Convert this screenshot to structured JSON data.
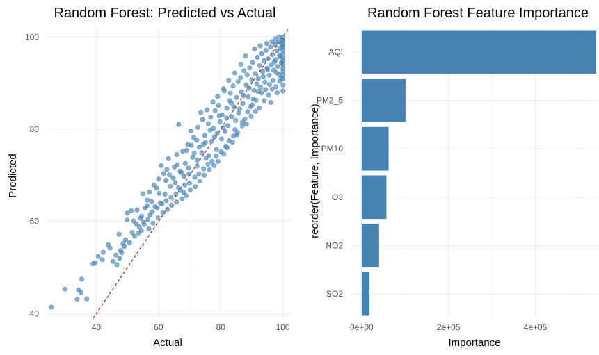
{
  "colors": {
    "point_fill": "#4682B4",
    "bar_fill": "#4682B4",
    "reference_line": "#8B0000",
    "grid": "#ebebeb",
    "tick_text": "#4d4d4d"
  },
  "chart_data": [
    {
      "type": "scatter",
      "title": "Random Forest: Predicted vs Actual",
      "xlabel": "Actual",
      "ylabel": "Predicted",
      "xlim": [
        24,
        103
      ],
      "ylim": [
        39,
        102
      ],
      "xticks": [
        40,
        60,
        80,
        100
      ],
      "yticks": [
        40,
        60,
        80,
        100
      ],
      "grid": true,
      "reference_line": {
        "slope": 1,
        "intercept": 0,
        "style": "dashed"
      },
      "points": [
        [
          25.5,
          41.4
        ],
        [
          29.9,
          45.3
        ],
        [
          33.8,
          43.1
        ],
        [
          34.3,
          45.1
        ],
        [
          35.3,
          47.5
        ],
        [
          35.1,
          44.6
        ],
        [
          36.9,
          43.2
        ],
        [
          38.9,
          50.8
        ],
        [
          39.6,
          51.0
        ],
        [
          41.9,
          51.7
        ],
        [
          44.4,
          54.2
        ],
        [
          45.4,
          51.3
        ],
        [
          46.6,
          50.6
        ],
        [
          47.3,
          57.2
        ],
        [
          47.8,
          53.7
        ],
        [
          48.1,
          53.2
        ],
        [
          49.4,
          56.0
        ],
        [
          50.0,
          61.8
        ],
        [
          51.2,
          62.3
        ],
        [
          52.0,
          60.1
        ],
        [
          53.1,
          62.5
        ],
        [
          53.8,
          58.8
        ],
        [
          54.2,
          60.7
        ],
        [
          54.5,
          58.0
        ],
        [
          55.0,
          66.0
        ],
        [
          55.4,
          59.3
        ],
        [
          56.3,
          63.4
        ],
        [
          56.4,
          64.6
        ],
        [
          57.1,
          66.4
        ],
        [
          57.8,
          64.3
        ],
        [
          58.5,
          67.9
        ],
        [
          59.4,
          67.2
        ],
        [
          60.0,
          69.2
        ],
        [
          60.2,
          66.1
        ],
        [
          60.9,
          72.1
        ],
        [
          61.7,
          70.4
        ],
        [
          62.4,
          68.9
        ],
        [
          62.7,
          71.3
        ],
        [
          63.2,
          73.6
        ],
        [
          63.5,
          70.1
        ],
        [
          64.7,
          69.4
        ],
        [
          65.4,
          68.4
        ],
        [
          65.9,
          74.5
        ],
        [
          66.0,
          72.3
        ],
        [
          66.5,
          81.0
        ],
        [
          66.4,
          67.3
        ],
        [
          67.3,
          70.6
        ],
        [
          68.1,
          66.3
        ],
        [
          68.6,
          72.6
        ],
        [
          69.1,
          75.4
        ],
        [
          69.8,
          70.3
        ],
        [
          70.4,
          79.6
        ],
        [
          70.6,
          76.5
        ],
        [
          71.5,
          74.8
        ],
        [
          72.3,
          77.6
        ],
        [
          72.5,
          73.3
        ],
        [
          73.1,
          76.1
        ],
        [
          73.6,
          83.6
        ],
        [
          74.4,
          76.7
        ],
        [
          74.9,
          78.6
        ],
        [
          75.3,
          73.7
        ],
        [
          76.0,
          81.2
        ],
        [
          76.2,
          74.3
        ],
        [
          76.8,
          82.6
        ],
        [
          77.1,
          77.4
        ],
        [
          77.6,
          80.2
        ],
        [
          78.2,
          84.0
        ],
        [
          78.6,
          75.6
        ],
        [
          78.9,
          79.1
        ],
        [
          79.3,
          85.2
        ],
        [
          79.8,
          81.6
        ],
        [
          80.3,
          77.9
        ],
        [
          80.5,
          83.1
        ],
        [
          81.2,
          88.3
        ],
        [
          81.4,
          79.5
        ],
        [
          82.0,
          84.5
        ],
        [
          82.3,
          80.8
        ],
        [
          82.9,
          86.2
        ],
        [
          83.1,
          87.8
        ],
        [
          83.6,
          82.7
        ],
        [
          84.0,
          89.4
        ],
        [
          84.3,
          84.8
        ],
        [
          84.6,
          79.9
        ],
        [
          85.1,
          86.9
        ],
        [
          85.6,
          90.3
        ],
        [
          85.8,
          83.5
        ],
        [
          86.4,
          91.2
        ],
        [
          86.7,
          88.1
        ],
        [
          87.1,
          85.6
        ],
        [
          87.5,
          92.7
        ],
        [
          87.8,
          82.2
        ],
        [
          88.2,
          89.6
        ],
        [
          88.5,
          91.8
        ],
        [
          88.9,
          87.0
        ],
        [
          89.3,
          93.3
        ],
        [
          89.6,
          84.9
        ],
        [
          90.0,
          90.7
        ],
        [
          90.3,
          94.5
        ],
        [
          90.7,
          88.4
        ],
        [
          91.1,
          92.1
        ],
        [
          91.4,
          86.3
        ],
        [
          91.8,
          95.6
        ],
        [
          92.1,
          91.0
        ],
        [
          92.5,
          93.8
        ],
        [
          92.8,
          89.1
        ],
        [
          93.2,
          96.4
        ],
        [
          93.5,
          92.5
        ],
        [
          93.9,
          94.9
        ],
        [
          94.2,
          90.2
        ],
        [
          94.6,
          97.1
        ],
        [
          94.9,
          93.2
        ],
        [
          95.3,
          95.3
        ],
        [
          95.6,
          91.7
        ],
        [
          96.0,
          97.8
        ],
        [
          96.3,
          94.0
        ],
        [
          96.7,
          96.2
        ],
        [
          97.0,
          92.8
        ],
        [
          97.4,
          98.4
        ],
        [
          97.7,
          95.1
        ],
        [
          98.1,
          97.0
        ],
        [
          98.3,
          93.6
        ],
        [
          98.6,
          98.9
        ],
        [
          98.9,
          96.0
        ],
        [
          99.2,
          97.6
        ],
        [
          99.5,
          94.4
        ],
        [
          99.8,
          99.4
        ],
        [
          100.0,
          100.0
        ],
        [
          100.0,
          99.2
        ],
        [
          100.0,
          98.5
        ],
        [
          100.0,
          97.8
        ],
        [
          100.0,
          97.1
        ],
        [
          100.0,
          96.3
        ],
        [
          100.0,
          95.5
        ],
        [
          100.0,
          94.8
        ],
        [
          100.0,
          94.0
        ],
        [
          100.0,
          93.2
        ],
        [
          100.0,
          92.5
        ],
        [
          100.0,
          91.7
        ],
        [
          100.0,
          90.9
        ],
        [
          100.0,
          89.6
        ],
        [
          99.4,
          91.2
        ],
        [
          98.7,
          91.9
        ],
        [
          97.9,
          92.3
        ],
        [
          96.8,
          90.6
        ],
        [
          95.7,
          89.7
        ],
        [
          94.4,
          88.6
        ],
        [
          93.1,
          87.9
        ],
        [
          91.6,
          89.8
        ],
        [
          90.5,
          86.5
        ],
        [
          89.1,
          88.9
        ],
        [
          87.4,
          87.3
        ],
        [
          86.1,
          84.4
        ],
        [
          84.8,
          81.9
        ],
        [
          83.4,
          85.7
        ],
        [
          81.9,
          82.4
        ],
        [
          80.8,
          80.3
        ],
        [
          79.5,
          82.9
        ],
        [
          78.0,
          78.3
        ],
        [
          76.6,
          79.8
        ],
        [
          75.1,
          77.1
        ],
        [
          73.9,
          74.9
        ],
        [
          72.4,
          72.0
        ],
        [
          71.0,
          73.9
        ],
        [
          69.6,
          71.6
        ],
        [
          68.2,
          69.8
        ],
        [
          66.9,
          70.9
        ],
        [
          65.1,
          71.8
        ],
        [
          63.8,
          67.6
        ],
        [
          62.1,
          65.9
        ],
        [
          60.6,
          64.0
        ],
        [
          58.9,
          63.2
        ],
        [
          57.3,
          61.4
        ],
        [
          55.7,
          62.9
        ],
        [
          54.6,
          61.1
        ],
        [
          52.9,
          59.4
        ],
        [
          51.5,
          57.6
        ],
        [
          49.9,
          60.3
        ],
        [
          48.6,
          55.2
        ],
        [
          46.3,
          52.7
        ],
        [
          43.8,
          54.9
        ],
        [
          42.2,
          53.3
        ],
        [
          40.6,
          52.4
        ],
        [
          88.0,
          95.9
        ],
        [
          86.5,
          94.1
        ],
        [
          84.5,
          92.2
        ],
        [
          82.6,
          90.6
        ],
        [
          80.9,
          88.8
        ],
        [
          79.0,
          87.1
        ],
        [
          77.5,
          85.9
        ],
        [
          75.6,
          84.2
        ],
        [
          74.2,
          82.1
        ],
        [
          72.7,
          80.4
        ],
        [
          71.3,
          78.2
        ],
        [
          69.4,
          76.7
        ],
        [
          67.8,
          75.2
        ],
        [
          90.9,
          97.4
        ],
        [
          92.7,
          98.1
        ],
        [
          94.8,
          98.6
        ],
        [
          96.5,
          99.0
        ],
        [
          97.6,
          99.6
        ],
        [
          98.8,
          100.0
        ],
        [
          99.7,
          98.2
        ],
        [
          99.1,
          95.7
        ],
        [
          97.3,
          94.6
        ],
        [
          95.1,
          93.0
        ],
        [
          93.7,
          91.4
        ],
        [
          92.0,
          88.2
        ],
        [
          90.2,
          85.3
        ],
        [
          88.7,
          83.8
        ],
        [
          87.0,
          81.5
        ],
        [
          85.3,
          78.8
        ],
        [
          83.8,
          77.2
        ],
        [
          82.1,
          76.0
        ],
        [
          81.0,
          74.6
        ],
        [
          79.1,
          73.0
        ],
        [
          77.9,
          72.1
        ],
        [
          76.4,
          71.2
        ],
        [
          74.7,
          70.0
        ],
        [
          73.3,
          68.7
        ],
        [
          71.8,
          67.5
        ],
        [
          70.2,
          66.8
        ],
        [
          68.9,
          65.6
        ],
        [
          67.6,
          64.9
        ],
        [
          65.8,
          64.2
        ],
        [
          64.2,
          63.5
        ],
        [
          62.9,
          62.6
        ],
        [
          61.4,
          61.9
        ],
        [
          59.8,
          60.8
        ],
        [
          58.2,
          59.6
        ],
        [
          56.9,
          58.4
        ],
        [
          98.2,
          87.9
        ],
        [
          96.1,
          85.8
        ],
        [
          100.0,
          88.3
        ],
        [
          99.0,
          90.4
        ],
        [
          97.8,
          89.2
        ],
        [
          96.6,
          88.7
        ],
        [
          95.4,
          87.4
        ],
        [
          94.0,
          86.2
        ],
        [
          92.4,
          84.6
        ],
        [
          91.2,
          83.9
        ],
        [
          89.8,
          82.8
        ],
        [
          88.3,
          81.1
        ],
        [
          86.9,
          80.7
        ],
        [
          85.4,
          79.3
        ],
        [
          84.1,
          78.5
        ],
        [
          82.7,
          77.5
        ],
        [
          81.6,
          76.3
        ],
        [
          80.1,
          75.1
        ],
        [
          78.5,
          74.2
        ],
        [
          77.2,
          73.0
        ],
        [
          75.9,
          72.4
        ],
        [
          74.5,
          71.4
        ],
        [
          73.0,
          70.3
        ],
        [
          71.7,
          69.6
        ],
        [
          70.0,
          68.3
        ],
        [
          68.5,
          67.9
        ],
        [
          67.1,
          66.7
        ],
        [
          65.6,
          65.9
        ],
        [
          64.0,
          65.2
        ],
        [
          62.5,
          64.5
        ],
        [
          61.1,
          63.8
        ],
        [
          59.6,
          62.9
        ],
        [
          58.0,
          62.1
        ],
        [
          56.6,
          60.4
        ],
        [
          55.2,
          59.9
        ],
        [
          53.6,
          57.5
        ],
        [
          52.3,
          56.8
        ],
        [
          50.7,
          55.4
        ],
        [
          49.0,
          54.6
        ],
        [
          47.5,
          52.0
        ]
      ]
    },
    {
      "type": "bar",
      "orientation": "horizontal",
      "title": "Random Forest Feature Importance",
      "xlabel": "Importance",
      "ylabel": "reorder(Feature, Importance)",
      "categories": [
        "AQI",
        "PM2_5",
        "PM10",
        "O3",
        "NO2",
        "SO2"
      ],
      "values": [
        540000,
        101000,
        62000,
        57000,
        40000,
        18000
      ],
      "xlim": [
        -27000,
        545000
      ],
      "xticks": [
        0,
        200000,
        400000
      ],
      "xtick_labels": [
        "0e+00",
        "2e+05",
        "4e+05"
      ],
      "grid": true
    }
  ]
}
